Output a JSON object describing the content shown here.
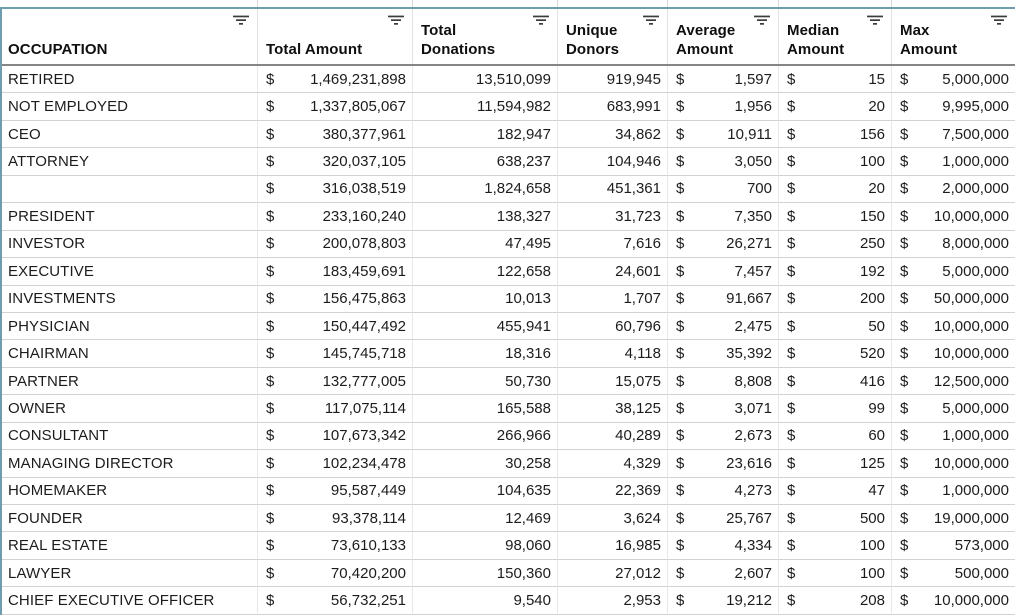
{
  "sheet": {
    "currency_symbol": "$",
    "filter_icon": "filter-icon",
    "columns": [
      {
        "key": "occupation",
        "label": "OCCUPATION",
        "type": "text"
      },
      {
        "key": "total_amount",
        "label": "Total Amount",
        "type": "currency"
      },
      {
        "key": "total_donations",
        "label": "Total\nDonations",
        "type": "number"
      },
      {
        "key": "unique_donors",
        "label": "Unique\nDonors",
        "type": "number"
      },
      {
        "key": "average_amount",
        "label": "Average\nAmount",
        "type": "currency"
      },
      {
        "key": "median_amount",
        "label": "Median\nAmount",
        "type": "currency"
      },
      {
        "key": "max_amount",
        "label": "Max\nAmount",
        "type": "currency"
      }
    ],
    "rows": [
      {
        "occupation": "RETIRED",
        "total_amount": "1,469,231,898",
        "total_donations": "13,510,099",
        "unique_donors": "919,945",
        "average_amount": "1,597",
        "median_amount": "15",
        "max_amount": "5,000,000"
      },
      {
        "occupation": "NOT EMPLOYED",
        "total_amount": "1,337,805,067",
        "total_donations": "11,594,982",
        "unique_donors": "683,991",
        "average_amount": "1,956",
        "median_amount": "20",
        "max_amount": "9,995,000"
      },
      {
        "occupation": "CEO",
        "total_amount": "380,377,961",
        "total_donations": "182,947",
        "unique_donors": "34,862",
        "average_amount": "10,911",
        "median_amount": "156",
        "max_amount": "7,500,000"
      },
      {
        "occupation": "ATTORNEY",
        "total_amount": "320,037,105",
        "total_donations": "638,237",
        "unique_donors": "104,946",
        "average_amount": "3,050",
        "median_amount": "100",
        "max_amount": "1,000,000"
      },
      {
        "occupation": "",
        "total_amount": "316,038,519",
        "total_donations": "1,824,658",
        "unique_donors": "451,361",
        "average_amount": "700",
        "median_amount": "20",
        "max_amount": "2,000,000"
      },
      {
        "occupation": "PRESIDENT",
        "total_amount": "233,160,240",
        "total_donations": "138,327",
        "unique_donors": "31,723",
        "average_amount": "7,350",
        "median_amount": "150",
        "max_amount": "10,000,000"
      },
      {
        "occupation": "INVESTOR",
        "total_amount": "200,078,803",
        "total_donations": "47,495",
        "unique_donors": "7,616",
        "average_amount": "26,271",
        "median_amount": "250",
        "max_amount": "8,000,000"
      },
      {
        "occupation": "EXECUTIVE",
        "total_amount": "183,459,691",
        "total_donations": "122,658",
        "unique_donors": "24,601",
        "average_amount": "7,457",
        "median_amount": "192",
        "max_amount": "5,000,000"
      },
      {
        "occupation": "INVESTMENTS",
        "total_amount": "156,475,863",
        "total_donations": "10,013",
        "unique_donors": "1,707",
        "average_amount": "91,667",
        "median_amount": "200",
        "max_amount": "50,000,000"
      },
      {
        "occupation": "PHYSICIAN",
        "total_amount": "150,447,492",
        "total_donations": "455,941",
        "unique_donors": "60,796",
        "average_amount": "2,475",
        "median_amount": "50",
        "max_amount": "10,000,000"
      },
      {
        "occupation": "CHAIRMAN",
        "total_amount": "145,745,718",
        "total_donations": "18,316",
        "unique_donors": "4,118",
        "average_amount": "35,392",
        "median_amount": "520",
        "max_amount": "10,000,000"
      },
      {
        "occupation": "PARTNER",
        "total_amount": "132,777,005",
        "total_donations": "50,730",
        "unique_donors": "15,075",
        "average_amount": "8,808",
        "median_amount": "416",
        "max_amount": "12,500,000"
      },
      {
        "occupation": "OWNER",
        "total_amount": "117,075,114",
        "total_donations": "165,588",
        "unique_donors": "38,125",
        "average_amount": "3,071",
        "median_amount": "99",
        "max_amount": "5,000,000"
      },
      {
        "occupation": "CONSULTANT",
        "total_amount": "107,673,342",
        "total_donations": "266,966",
        "unique_donors": "40,289",
        "average_amount": "2,673",
        "median_amount": "60",
        "max_amount": "1,000,000"
      },
      {
        "occupation": "MANAGING DIRECTOR",
        "total_amount": "102,234,478",
        "total_donations": "30,258",
        "unique_donors": "4,329",
        "average_amount": "23,616",
        "median_amount": "125",
        "max_amount": "10,000,000"
      },
      {
        "occupation": "HOMEMAKER",
        "total_amount": "95,587,449",
        "total_donations": "104,635",
        "unique_donors": "22,369",
        "average_amount": "4,273",
        "median_amount": "47",
        "max_amount": "1,000,000"
      },
      {
        "occupation": "FOUNDER",
        "total_amount": "93,378,114",
        "total_donations": "12,469",
        "unique_donors": "3,624",
        "average_amount": "25,767",
        "median_amount": "500",
        "max_amount": "19,000,000"
      },
      {
        "occupation": "REAL ESTATE",
        "total_amount": "73,610,133",
        "total_donations": "98,060",
        "unique_donors": "16,985",
        "average_amount": "4,334",
        "median_amount": "100",
        "max_amount": "573,000"
      },
      {
        "occupation": "LAWYER",
        "total_amount": "70,420,200",
        "total_donations": "150,360",
        "unique_donors": "27,012",
        "average_amount": "2,607",
        "median_amount": "100",
        "max_amount": "500,000"
      },
      {
        "occupation": "CHIEF EXECUTIVE OFFICER",
        "total_amount": "56,732,251",
        "total_donations": "9,540",
        "unique_donors": "2,953",
        "average_amount": "19,212",
        "median_amount": "208",
        "max_amount": "10,000,000"
      }
    ],
    "colors": {
      "freeze_line": "#6e9dae",
      "header_underline": "#858585",
      "row_border": "#d2d2d2",
      "col_border": "#e8e8e8",
      "filter_icon": "#3c3c3c"
    }
  }
}
